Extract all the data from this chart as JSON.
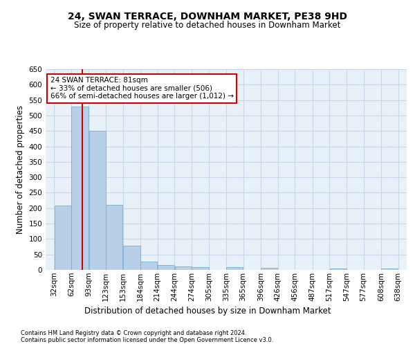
{
  "title": "24, SWAN TERRACE, DOWNHAM MARKET, PE38 9HD",
  "subtitle": "Size of property relative to detached houses in Downham Market",
  "xlabel_bottom": "Distribution of detached houses by size in Downham Market",
  "ylabel": "Number of detached properties",
  "footer_line1": "Contains HM Land Registry data © Crown copyright and database right 2024.",
  "footer_line2": "Contains public sector information licensed under the Open Government Licence v3.0.",
  "bar_edges": [
    32,
    62,
    93,
    123,
    153,
    184,
    214,
    244,
    274,
    305,
    335,
    365,
    396,
    426,
    456,
    487,
    517,
    547,
    577,
    608,
    638
  ],
  "bar_heights": [
    208,
    530,
    450,
    210,
    78,
    27,
    15,
    12,
    8,
    0,
    8,
    0,
    6,
    0,
    0,
    0,
    5,
    0,
    0,
    5,
    0
  ],
  "bar_color": "#b8cfe8",
  "bar_edgecolor": "#7aadd4",
  "property_line_x": 81,
  "property_line_color": "#cc0000",
  "annotation_text": "24 SWAN TERRACE: 81sqm\n← 33% of detached houses are smaller (506)\n66% of semi-detached houses are larger (1,012) →",
  "annotation_box_color": "#cc0000",
  "ylim": [
    0,
    650
  ],
  "yticks": [
    0,
    50,
    100,
    150,
    200,
    250,
    300,
    350,
    400,
    450,
    500,
    550,
    600,
    650
  ],
  "grid_color": "#c8d8ea",
  "background_color": "#e8f0f8",
  "title_fontsize": 10,
  "subtitle_fontsize": 8.5,
  "ylabel_fontsize": 8.5,
  "tick_fontsize": 7.5,
  "footer_fontsize": 6.0
}
